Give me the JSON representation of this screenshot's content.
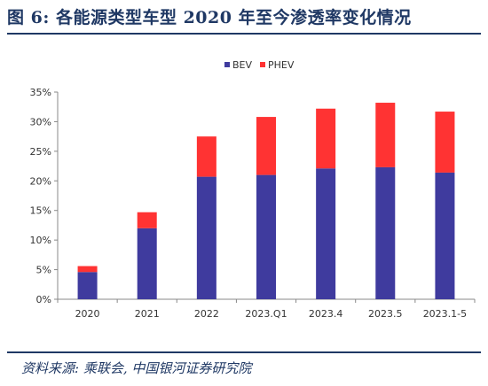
{
  "header": {
    "title": "图 6:  各能源类型车型 2020 年至今渗透率变化情况"
  },
  "footer": {
    "source": "资料来源:  乘联会,  中国银河证券研究院"
  },
  "chart_data": {
    "type": "bar",
    "stacked": true,
    "categories": [
      "2020",
      "2021",
      "2022",
      "2023.Q1",
      "2023.4",
      "2023.5",
      "2023.1-5"
    ],
    "series": [
      {
        "name": "BEV",
        "color": "#3f3b9e",
        "values": [
          4.6,
          12.0,
          20.7,
          21.0,
          22.1,
          22.3,
          21.4
        ]
      },
      {
        "name": "PHEV",
        "color": "#ff3333",
        "values": [
          1.0,
          2.7,
          6.8,
          9.8,
          10.1,
          10.9,
          10.3
        ]
      }
    ],
    "y_ticks": [
      "0%",
      "5%",
      "10%",
      "15%",
      "20%",
      "25%",
      "30%",
      "35%"
    ],
    "ylim": [
      0,
      35
    ],
    "legend_position": "top-center",
    "grid": false
  }
}
